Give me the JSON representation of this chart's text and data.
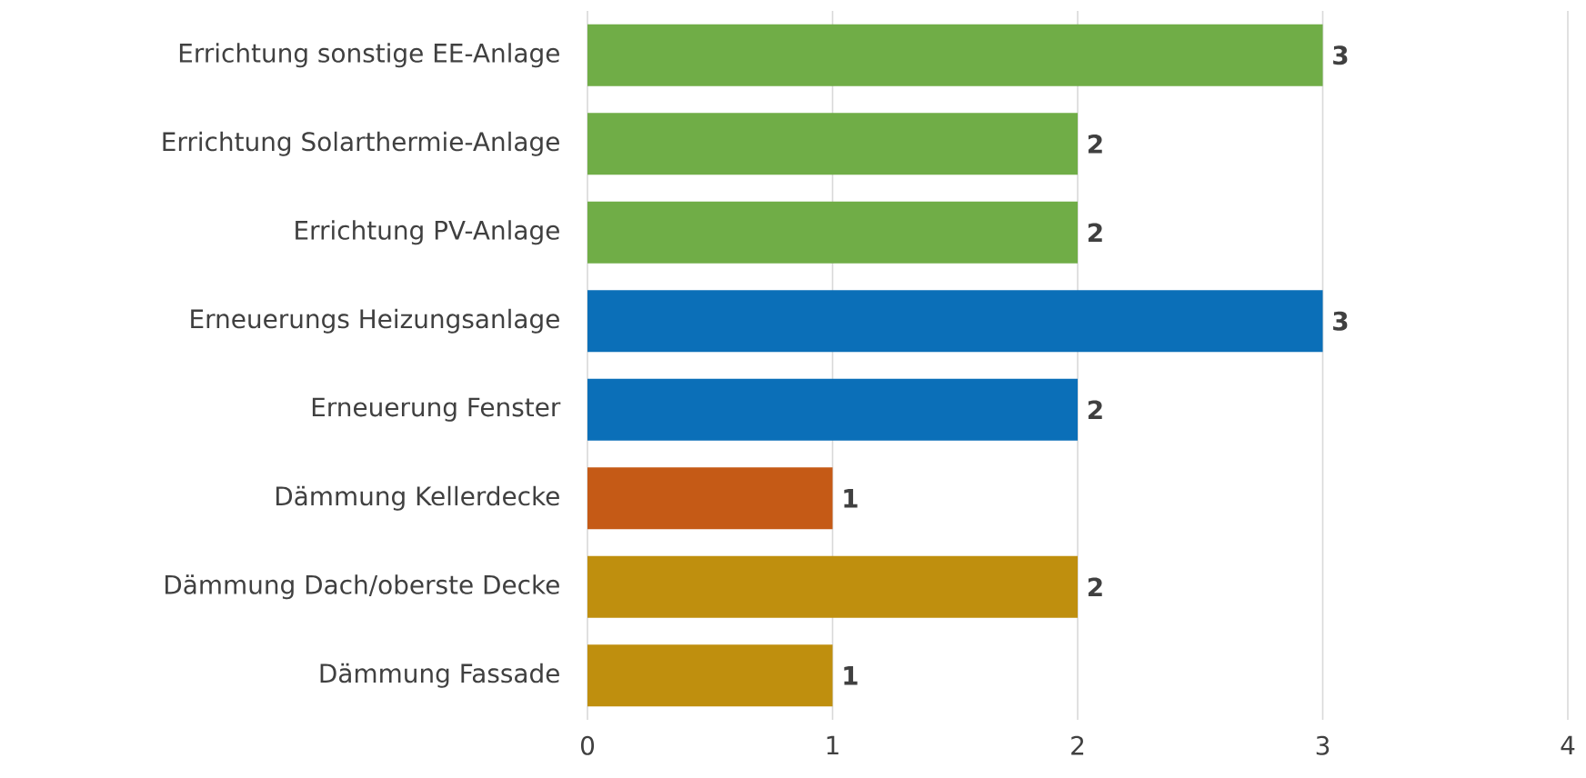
{
  "chart_data": {
    "type": "bar",
    "orientation": "horizontal",
    "categories": [
      "Errichtung sonstige EE-Anlage",
      "Errichtung Solarthermie-Anlage",
      "Errichtung PV-Anlage",
      "Erneuerungs Heizungsanlage",
      "Erneuerung Fenster",
      "Dämmung Kellerdecke",
      "Dämmung Dach/oberste Decke",
      "Dämmung Fassade"
    ],
    "values": [
      3,
      2,
      2,
      3,
      2,
      1,
      2,
      1
    ],
    "colors": [
      "#70ad47",
      "#70ad47",
      "#70ad47",
      "#0b6fb8",
      "#0b6fb8",
      "#c55a16",
      "#bf8f0e",
      "#bf8f0e"
    ],
    "xlim": [
      0,
      4
    ],
    "xticks": [
      0,
      1,
      2,
      3,
      4
    ],
    "grid": "x",
    "data_labels": true
  }
}
